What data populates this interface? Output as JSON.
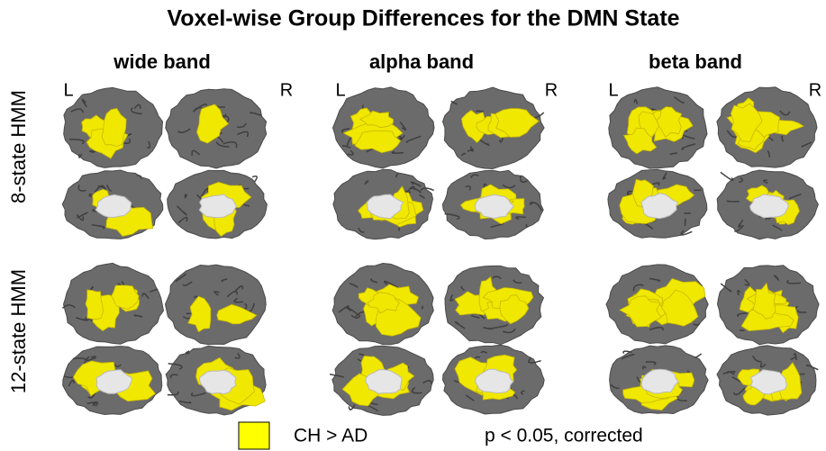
{
  "title": "Voxel-wise Group Differences for the DMN State",
  "columns": [
    {
      "label": "wide band",
      "left": "L",
      "right": "R"
    },
    {
      "label": "alpha band",
      "left": "L",
      "right": "R"
    },
    {
      "label": "beta band",
      "left": "L",
      "right": "R"
    }
  ],
  "rows": [
    {
      "label": "8-state HMM"
    },
    {
      "label": "12-state HMM"
    }
  ],
  "legend": {
    "label": "CH > AD",
    "note": "p < 0.05, corrected"
  }
}
